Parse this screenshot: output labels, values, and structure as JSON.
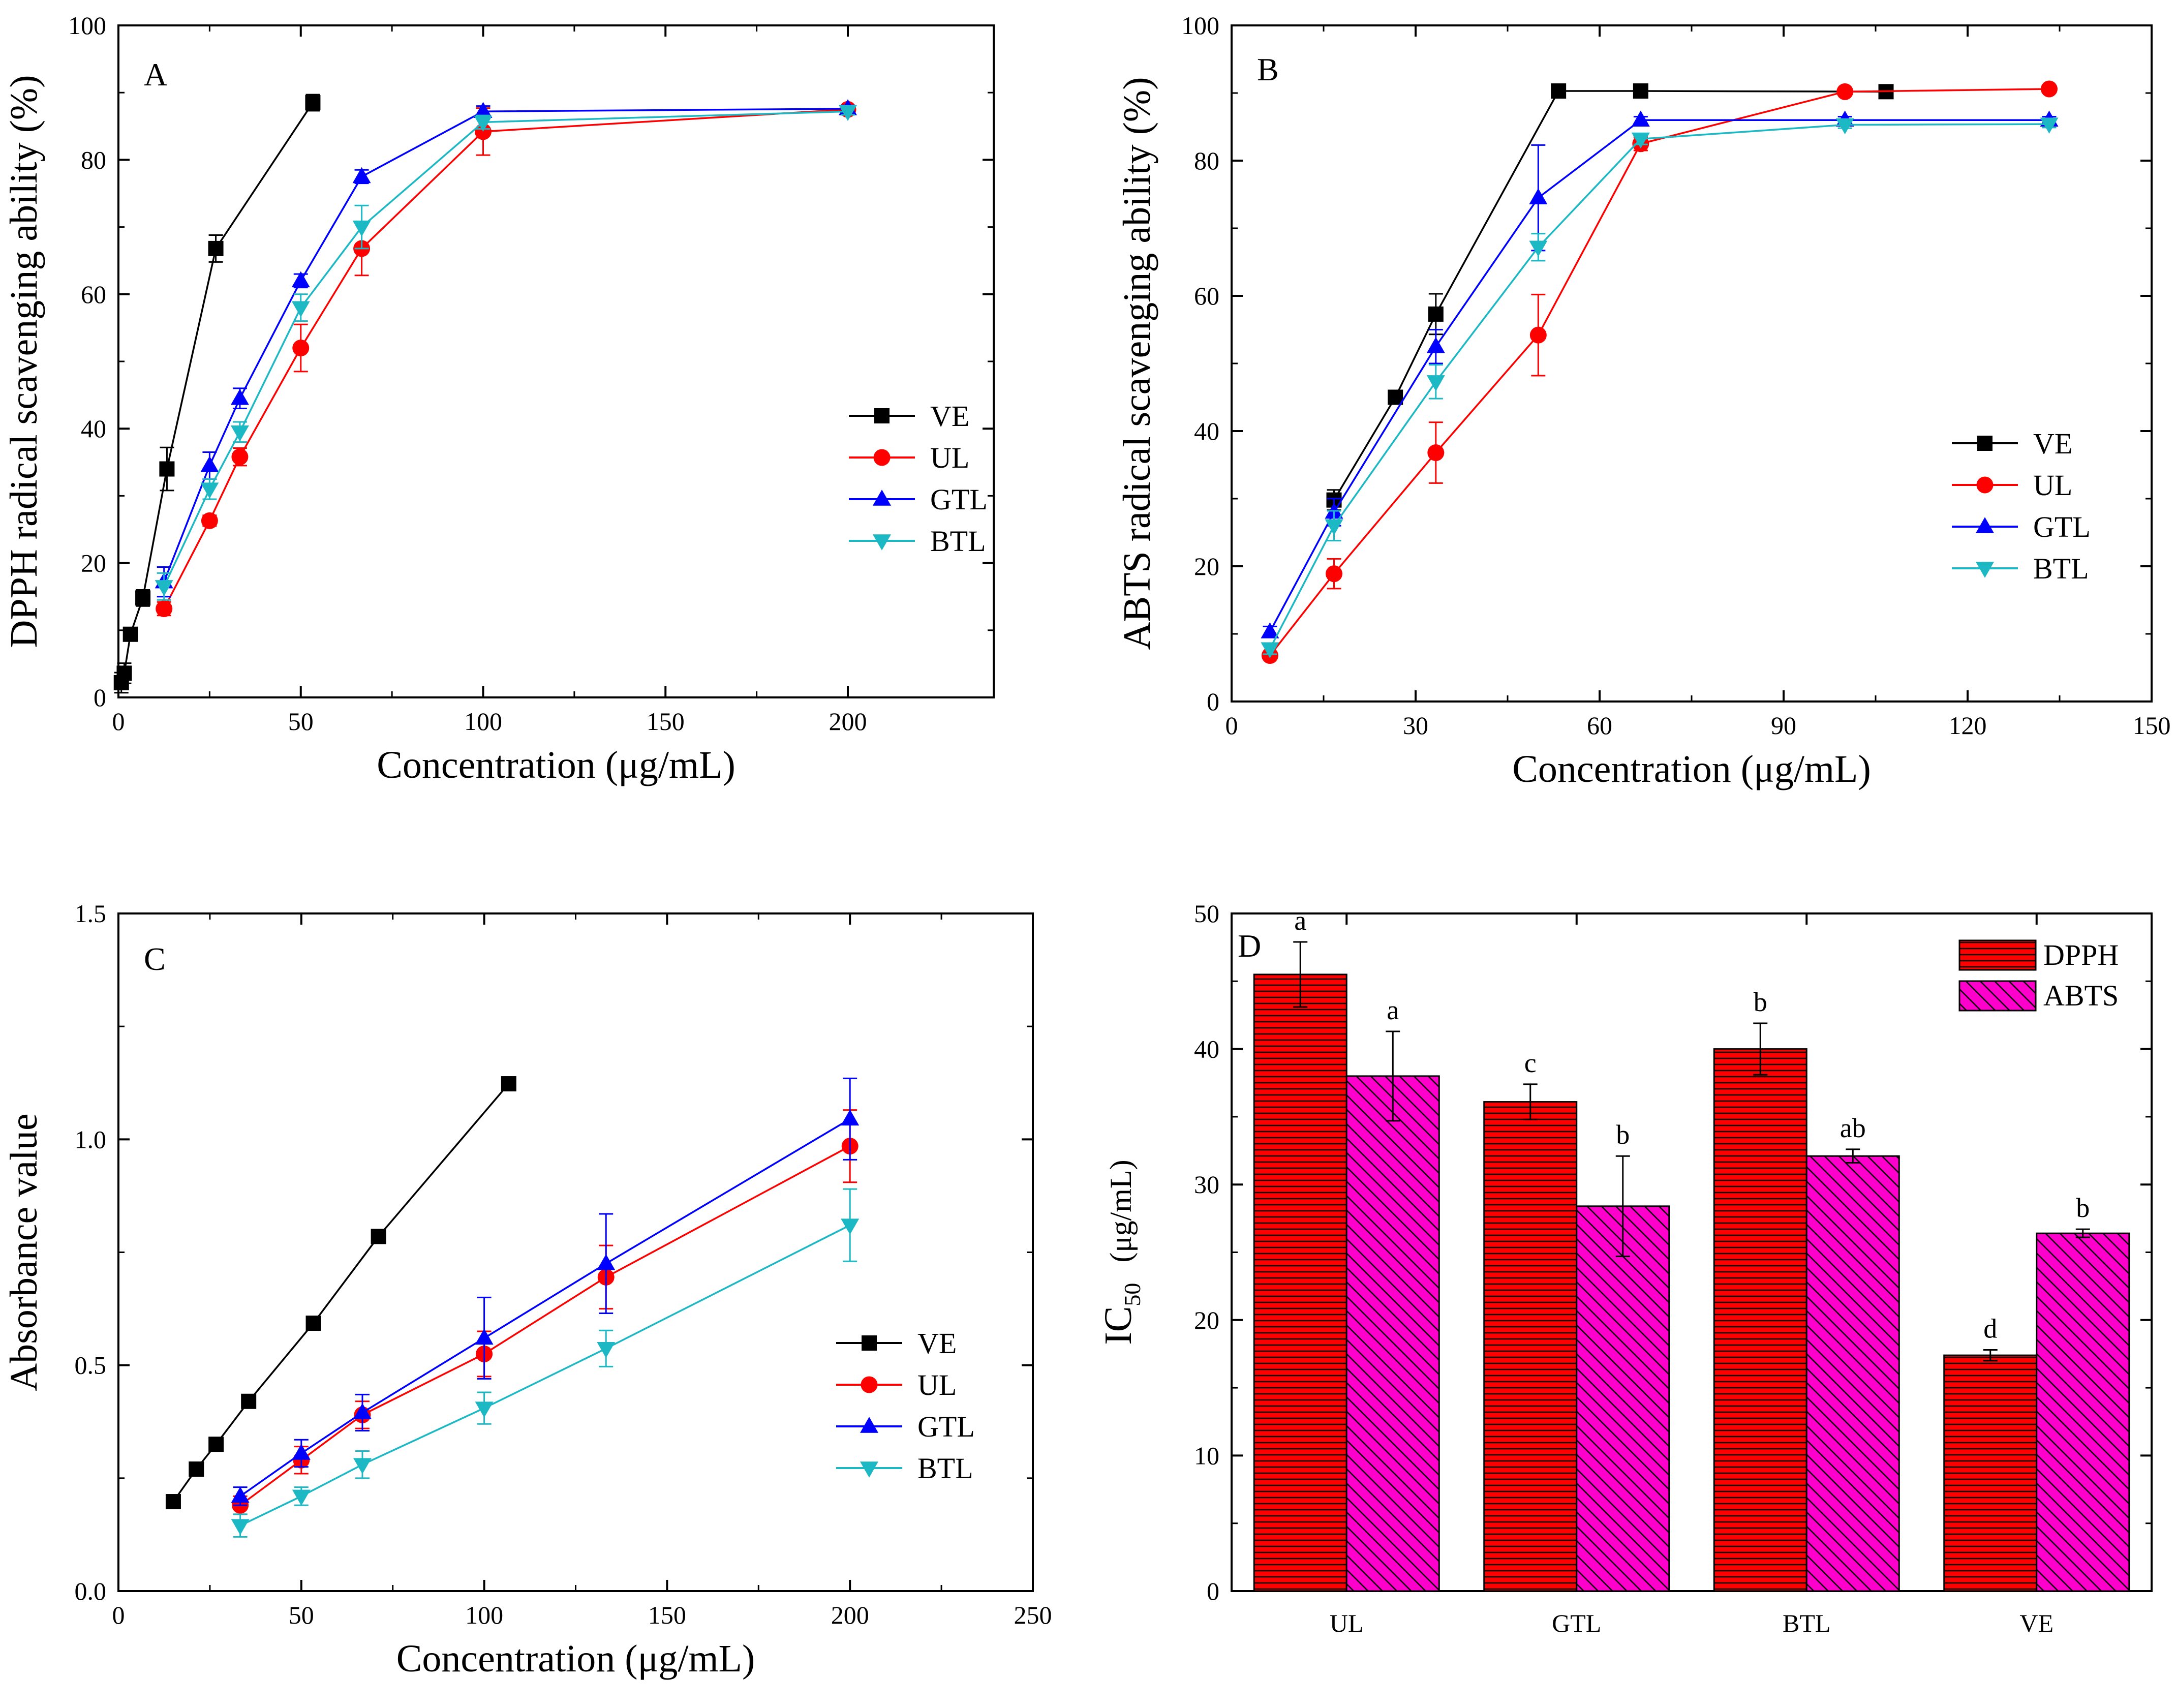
{
  "chart_data": [
    {
      "panel": "A",
      "type": "line",
      "xlabel": "Concentration (μg/mL)",
      "ylabel": "DPPH radical scavenging ability (%)",
      "xlim": [
        0,
        240
      ],
      "ylim": [
        0,
        100
      ],
      "xticks": [
        0,
        50,
        100,
        150,
        200
      ],
      "yticks": [
        0,
        20,
        40,
        60,
        80,
        100
      ],
      "legend_position": "middle-right",
      "series": [
        {
          "name": "VE",
          "color": "#000000",
          "marker": "square",
          "x": [
            0.8,
            1.6,
            3.3,
            6.7,
            13.3,
            26.7,
            53.3
          ],
          "y": [
            2.2,
            3.6,
            9.4,
            14.8,
            34.0,
            66.8,
            88.5
          ],
          "err": [
            1.5,
            1.5,
            1.0,
            1.2,
            3.2,
            2.0,
            1.2
          ]
        },
        {
          "name": "UL",
          "color": "#ff0000",
          "marker": "circle",
          "x": [
            12.5,
            25,
            33.3,
            50,
            66.7,
            100,
            200
          ],
          "y": [
            13.2,
            26.3,
            35.8,
            52.0,
            66.8,
            84.2,
            87.5
          ],
          "err": [
            1.0,
            0.8,
            1.3,
            3.5,
            4.0,
            3.5,
            0.5
          ]
        },
        {
          "name": "GTL",
          "color": "#0000ff",
          "marker": "triangle-up",
          "x": [
            12.5,
            25,
            33.3,
            50,
            66.7,
            100,
            200
          ],
          "y": [
            17.2,
            34.5,
            44.5,
            62.0,
            77.5,
            87.2,
            87.6
          ],
          "err": [
            2.2,
            2.0,
            1.5,
            1.0,
            1.0,
            0.8,
            0.5
          ]
        },
        {
          "name": "BTL",
          "color": "#1cb8c4",
          "marker": "triangle-down",
          "x": [
            12.5,
            25,
            33.3,
            50,
            66.7,
            100,
            200
          ],
          "y": [
            16.5,
            31.0,
            39.5,
            58.0,
            70.0,
            85.6,
            87.2
          ],
          "err": [
            2.0,
            1.5,
            1.5,
            2.0,
            3.2,
            1.0,
            0.5
          ]
        }
      ]
    },
    {
      "panel": "B",
      "type": "line",
      "xlabel": "Concentration (μg/mL)",
      "ylabel": "ABTS radical scavenging ability (%)",
      "xlim": [
        0,
        150
      ],
      "ylim": [
        0,
        100
      ],
      "xticks": [
        0,
        30,
        60,
        90,
        120,
        150
      ],
      "yticks": [
        0,
        20,
        40,
        60,
        80,
        100
      ],
      "legend_position": "middle-right",
      "series": [
        {
          "name": "VE",
          "color": "#000000",
          "marker": "square",
          "x": [
            16.7,
            26.7,
            33.3,
            53.3,
            66.7,
            106.7
          ],
          "y": [
            29.8,
            45.0,
            57.3,
            90.3,
            90.3,
            90.2
          ],
          "err": [
            1.5,
            0.8,
            3.0,
            0.5,
            0.5,
            0.5
          ]
        },
        {
          "name": "UL",
          "color": "#ff0000",
          "marker": "circle",
          "x": [
            6.25,
            16.7,
            33.3,
            50,
            66.7,
            100,
            133.3
          ],
          "y": [
            6.8,
            18.9,
            36.8,
            54.2,
            82.5,
            90.2,
            90.6
          ],
          "err": [
            0.5,
            2.2,
            4.5,
            6.0,
            1.0,
            0.5,
            0.5
          ]
        },
        {
          "name": "GTL",
          "color": "#0000ff",
          "marker": "triangle-up",
          "x": [
            6.25,
            16.7,
            33.3,
            50,
            66.7,
            100,
            133.3
          ],
          "y": [
            10.3,
            28.0,
            52.5,
            74.5,
            86.0,
            86.0,
            86.0
          ],
          "err": [
            0.8,
            2.0,
            2.5,
            7.8,
            0.5,
            0.5,
            0.5
          ]
        },
        {
          "name": "BTL",
          "color": "#1cb8c4",
          "marker": "triangle-down",
          "x": [
            6.25,
            16.7,
            33.3,
            50,
            66.7,
            100,
            133.3
          ],
          "y": [
            7.8,
            26.0,
            47.3,
            67.2,
            83.2,
            85.3,
            85.4
          ],
          "err": [
            0.8,
            2.2,
            2.5,
            2.0,
            0.8,
            0.5,
            0.5
          ]
        }
      ]
    },
    {
      "panel": "C",
      "type": "line",
      "xlabel": "Concentration (μg/mL)",
      "ylabel": "Absorbance value",
      "xlim": [
        0,
        250
      ],
      "ylim": [
        0,
        1.5
      ],
      "xticks": [
        0,
        50,
        100,
        150,
        200,
        250
      ],
      "yticks": [
        0.0,
        0.5,
        1.0,
        1.5
      ],
      "ytick_labels": [
        "0.0",
        "0.5",
        "1.0",
        "1.5"
      ],
      "legend_position": "lower-right",
      "series": [
        {
          "name": "VE",
          "color": "#000000",
          "marker": "square",
          "x": [
            15,
            21.3,
            26.7,
            35.6,
            53.3,
            71.1,
            106.7
          ],
          "y": [
            0.198,
            0.27,
            0.325,
            0.42,
            0.593,
            0.785,
            1.123
          ],
          "err": [
            0.005,
            0.005,
            0.005,
            0.005,
            0.005,
            0.005,
            0.005
          ]
        },
        {
          "name": "UL",
          "color": "#ff0000",
          "marker": "circle",
          "x": [
            33.3,
            50,
            66.7,
            100,
            133.3,
            200
          ],
          "y": [
            0.19,
            0.29,
            0.39,
            0.525,
            0.695,
            0.985
          ],
          "err": [
            0.02,
            0.03,
            0.03,
            0.05,
            0.07,
            0.08
          ]
        },
        {
          "name": "GTL",
          "color": "#0000ff",
          "marker": "triangle-up",
          "x": [
            33.3,
            50,
            66.7,
            100,
            133.3,
            200
          ],
          "y": [
            0.21,
            0.305,
            0.395,
            0.56,
            0.725,
            1.045
          ],
          "err": [
            0.02,
            0.03,
            0.04,
            0.09,
            0.11,
            0.09
          ]
        },
        {
          "name": "BTL",
          "color": "#1cb8c4",
          "marker": "triangle-down",
          "x": [
            33.3,
            50,
            66.7,
            100,
            133.3,
            200
          ],
          "y": [
            0.145,
            0.21,
            0.28,
            0.405,
            0.537,
            0.81
          ],
          "err": [
            0.025,
            0.02,
            0.03,
            0.035,
            0.04,
            0.08
          ]
        }
      ]
    },
    {
      "panel": "D",
      "type": "bar",
      "xlabel": "",
      "ylabel_main": "IC",
      "ylabel_sub": "50",
      "ylabel_unit": "(μg/mL)",
      "categories": [
        "UL",
        "GTL",
        "BTL",
        "VE"
      ],
      "ylim": [
        0,
        50
      ],
      "yticks": [
        0,
        10,
        20,
        30,
        40,
        50
      ],
      "legend_position": "top-right",
      "series": [
        {
          "name": "DPPH",
          "color": "#ff0000",
          "pattern": "horizontal-lines",
          "values": [
            45.5,
            36.1,
            40.0,
            17.4
          ],
          "err": [
            2.4,
            1.3,
            1.9,
            0.4
          ],
          "labels": [
            "a",
            "c",
            "b",
            "d"
          ]
        },
        {
          "name": "ABTS",
          "color": "#ff00cc",
          "pattern": "diagonal-lines",
          "values": [
            38.0,
            28.4,
            32.1,
            26.4
          ],
          "err": [
            3.3,
            3.7,
            0.5,
            0.3
          ],
          "labels": [
            "a",
            "b",
            "ab",
            "b"
          ]
        }
      ]
    }
  ]
}
